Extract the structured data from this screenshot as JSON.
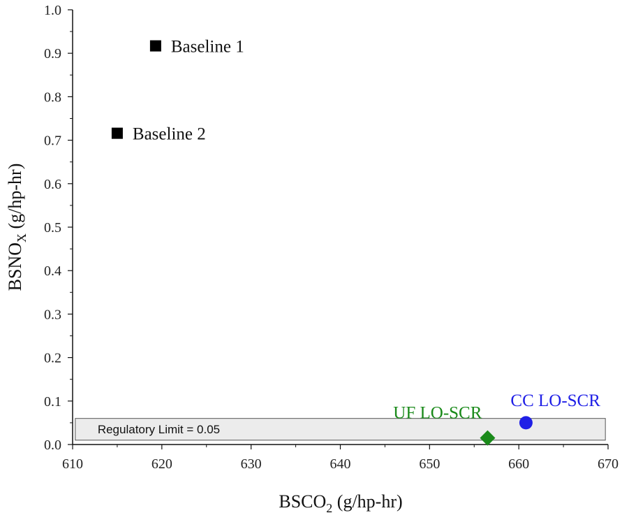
{
  "chart_data": {
    "type": "scatter",
    "title": "",
    "xlabel": {
      "main": "BSCO",
      "sub": "2",
      "unit": " (g/hp-hr)"
    },
    "ylabel": {
      "main": "BSNO",
      "sub": "X",
      "unit": " (g/hp-hr)"
    },
    "xlim": [
      610,
      670
    ],
    "ylim": [
      0,
      1.0
    ],
    "x_ticks": [
      610,
      620,
      630,
      640,
      650,
      660,
      670
    ],
    "y_ticks": [
      0.0,
      0.1,
      0.2,
      0.3,
      0.4,
      0.5,
      0.6,
      0.7,
      0.8,
      0.9,
      1.0
    ],
    "grid": false,
    "series": [
      {
        "name": "Baseline 1",
        "x": 619.3,
        "y": 0.917,
        "marker": "square",
        "color": "#000000",
        "label_color": "#111111",
        "label_side": "right"
      },
      {
        "name": "Baseline 2",
        "x": 615.0,
        "y": 0.716,
        "marker": "square",
        "color": "#000000",
        "label_color": "#111111",
        "label_side": "right"
      },
      {
        "name": "UF LO-SCR",
        "x": 656.5,
        "y": 0.015,
        "marker": "diamond",
        "color": "#1a8a1a",
        "label_color": "#1a8a1a",
        "label_side": "above-left"
      },
      {
        "name": "CC LO-SCR",
        "x": 660.8,
        "y": 0.05,
        "marker": "circle",
        "color": "#1f1fe6",
        "label_color": "#1f1fe6",
        "label_side": "above-right"
      }
    ],
    "annotations": [
      {
        "type": "band",
        "y_from": 0.01,
        "y_to": 0.06,
        "x_from": 610.3,
        "x_to": 669.7,
        "fill": "#ececec",
        "label": "Regulatory Limit = 0.05"
      }
    ]
  }
}
